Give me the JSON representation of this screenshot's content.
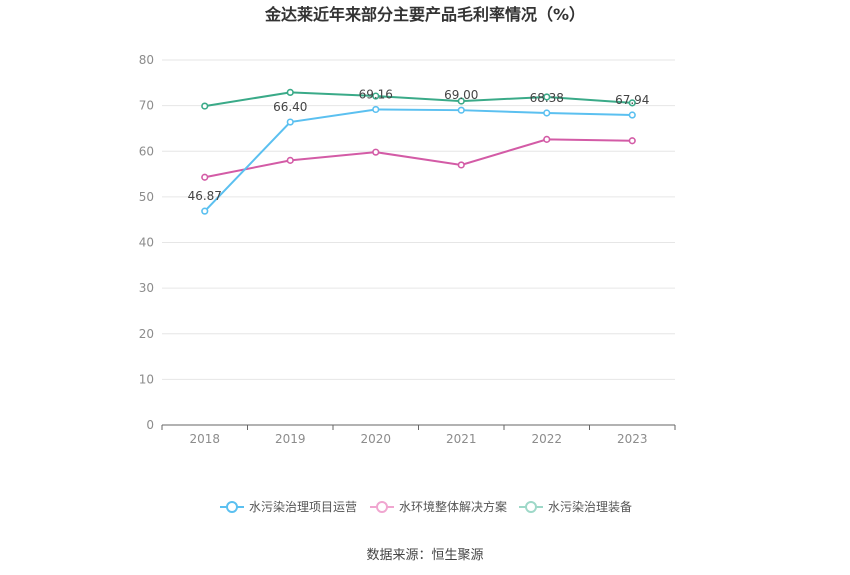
{
  "chart_data": {
    "type": "line",
    "title": "金达莱近年来部分主要产品毛利率情况（%）",
    "categories": [
      "2018",
      "2019",
      "2020",
      "2021",
      "2022",
      "2023"
    ],
    "ylim": [
      0,
      80
    ],
    "yticks": [
      "0",
      "10",
      "20",
      "30",
      "40",
      "50",
      "60",
      "70",
      "80"
    ],
    "grid": true,
    "legend_position": "bottom",
    "series": [
      {
        "name": "水污染治理项目运营",
        "color": "#5bc0f0",
        "values": [
          46.87,
          66.4,
          69.16,
          69.0,
          68.38,
          67.94
        ],
        "labels": [
          "46.87",
          "66.40",
          "69.16",
          "69.00",
          "68.38",
          "67.94"
        ]
      },
      {
        "name": "水环境整体解决方案",
        "color": "#d35ba6",
        "values": [
          54.3,
          58.0,
          59.8,
          57.0,
          62.6,
          62.3
        ],
        "labels": []
      },
      {
        "name": "水污染治理装备",
        "color": "#3aaa88",
        "values": [
          69.9,
          72.9,
          72.1,
          71.0,
          71.9,
          70.6
        ],
        "labels": []
      }
    ],
    "legend_colors": [
      "#5bc0f0",
      "#f0a6d0",
      "#9ed8c8"
    ],
    "source": "数据来源：恒生聚源"
  }
}
